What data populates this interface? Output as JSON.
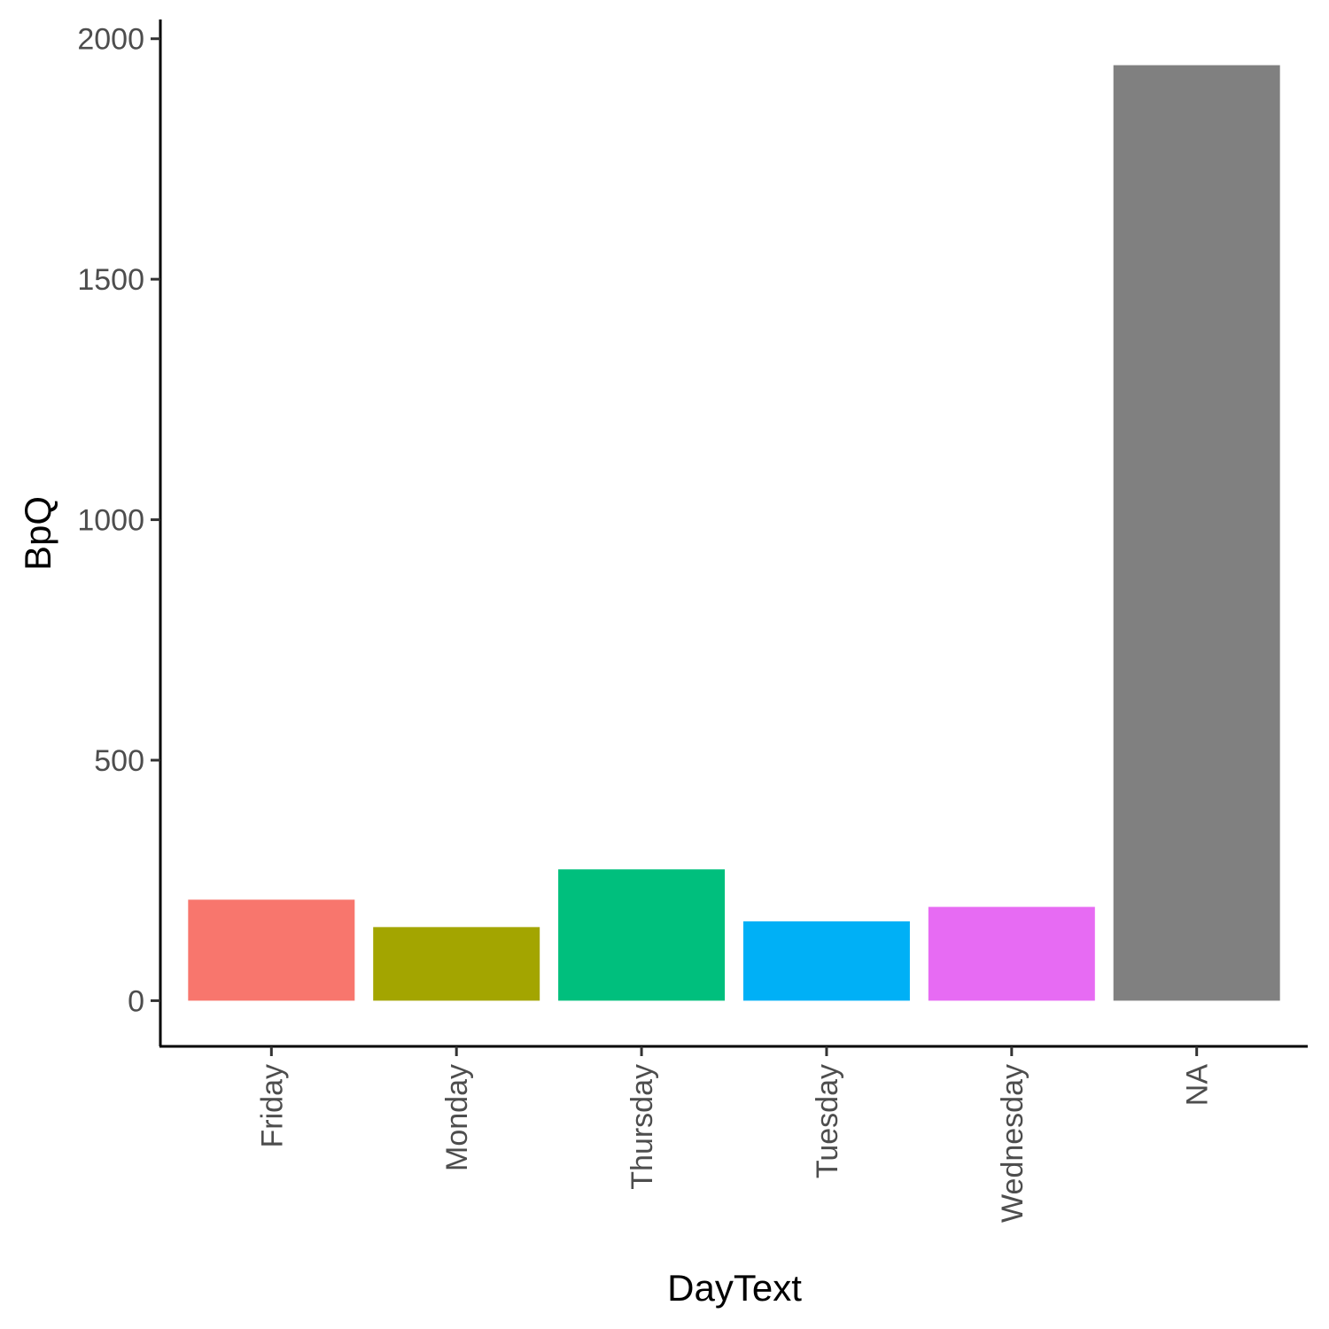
{
  "chart_data": {
    "type": "bar",
    "title": "",
    "xlabel": "DayText",
    "ylabel": "BpQ",
    "categories": [
      "Friday",
      "Monday",
      "Thursday",
      "Tuesday",
      "Wednesday",
      "NA"
    ],
    "values": [
      210,
      153,
      273,
      165,
      195,
      1945
    ],
    "colors": [
      "#F8766D",
      "#A3A500",
      "#00BF7D",
      "#00B0F6",
      "#E76BF3",
      "#808080"
    ],
    "ylim": [
      -95,
      2040
    ],
    "yticks": [
      0,
      500,
      1000,
      1500,
      2000
    ],
    "grid": false,
    "legend": "none"
  }
}
